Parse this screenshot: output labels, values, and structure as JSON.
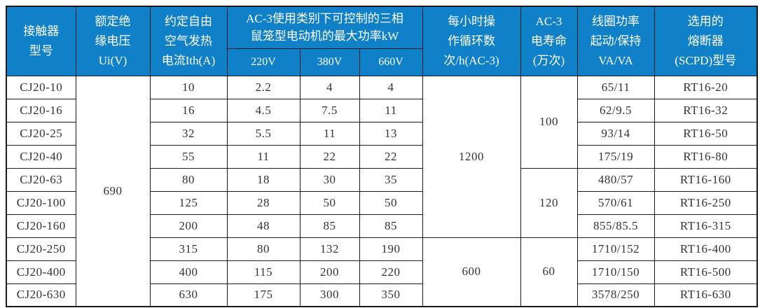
{
  "colors": {
    "page_bg": "#ffffff",
    "header_bg": "#1080c8",
    "header_text": "#ffffff",
    "body_text": "#333333",
    "border": "#1a1a1a"
  },
  "table": {
    "header": {
      "model": "接触器\n型号",
      "insulation_voltage": "额定绝\n缘电压\nUi(V)",
      "thermal_current": "约定自由\n空气发热\n电流Ith(A)",
      "ac3_power_group": "AC-3使用类别下可控制的三相\n鼠笼型电动机的最大功率kW",
      "voltage_cols": [
        "220V",
        "380V",
        "660V"
      ],
      "cycles": "每小时操\n作循环数\n次/h(AC-3)",
      "electrical_life": "AC-3\n电寿命\n(万次)",
      "coil_power": "线圈功率\n起动/保持\nVA/VA",
      "fuse": "选用的\n熔断器\n(SCPD)型号"
    },
    "merged": {
      "ui": "690",
      "cycles_a": "1200",
      "cycles_b": "600",
      "life_a": "100",
      "life_b": "120",
      "life_c": "60"
    },
    "body": [
      {
        "model": "CJ20-10",
        "ith": "10",
        "kw220": "2.2",
        "kw380": "4",
        "kw660": "4",
        "coil": "65/11",
        "fuse": "RT16-20"
      },
      {
        "model": "CJ20-16",
        "ith": "16",
        "kw220": "4.5",
        "kw380": "7.5",
        "kw660": "11",
        "coil": "62/9.5",
        "fuse": "RT16-32"
      },
      {
        "model": "CJ20-25",
        "ith": "32",
        "kw220": "5.5",
        "kw380": "11",
        "kw660": "13",
        "coil": "93/14",
        "fuse": "RT16-50"
      },
      {
        "model": "CJ20-40",
        "ith": "55",
        "kw220": "11",
        "kw380": "22",
        "kw660": "22",
        "coil": "175/19",
        "fuse": "RT16-80"
      },
      {
        "model": "CJ20-63",
        "ith": "80",
        "kw220": "18",
        "kw380": "30",
        "kw660": "35",
        "coil": "480/57",
        "fuse": "RT16-160"
      },
      {
        "model": "CJ20-100",
        "ith": "125",
        "kw220": "28",
        "kw380": "50",
        "kw660": "50",
        "coil": "570/61",
        "fuse": "RT16-250"
      },
      {
        "model": "CJ20-160",
        "ith": "200",
        "kw220": "48",
        "kw380": "85",
        "kw660": "85",
        "coil": "855/85.5",
        "fuse": "RT16-315"
      },
      {
        "model": "CJ20-250",
        "ith": "315",
        "kw220": "80",
        "kw380": "132",
        "kw660": "190",
        "coil": "1710/152",
        "fuse": "RT16-400"
      },
      {
        "model": "CJ20-400",
        "ith": "400",
        "kw220": "115",
        "kw380": "200",
        "kw660": "220",
        "coil": "1710/150",
        "fuse": "RT16-500"
      },
      {
        "model": "CJ20-630",
        "ith": "630",
        "kw220": "175",
        "kw380": "300",
        "kw660": "350",
        "coil": "3578/250",
        "fuse": "RT16-630"
      }
    ]
  }
}
